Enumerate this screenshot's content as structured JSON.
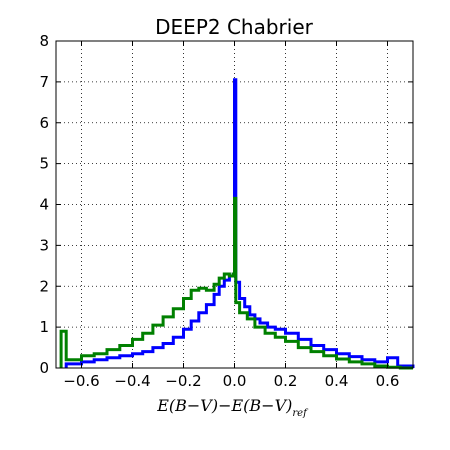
{
  "chart_data": {
    "type": "histogram",
    "title": "DEEP2 Chabrier",
    "xlabel": {
      "main": "E(B−V)−E(B−V)",
      "subscript": "ref"
    },
    "ylabel": "",
    "xlim": [
      -0.7,
      0.7
    ],
    "ylim": [
      0,
      8
    ],
    "xticks": [
      -0.6,
      -0.4,
      -0.2,
      0.0,
      0.2,
      0.4,
      0.6
    ],
    "xtick_labels": [
      "−0.6",
      "−0.4",
      "−0.2",
      "0.0",
      "0.2",
      "0.4",
      "0.6"
    ],
    "yticks": [
      0,
      1,
      2,
      3,
      4,
      5,
      6,
      7,
      8
    ],
    "ytick_labels": [
      "0",
      "1",
      "2",
      "3",
      "4",
      "5",
      "6",
      "7",
      "8"
    ],
    "grid": true,
    "series": [
      {
        "color": "#0000ff",
        "x": [
          -0.66,
          -0.6,
          -0.55,
          -0.5,
          -0.45,
          -0.4,
          -0.36,
          -0.32,
          -0.28,
          -0.24,
          -0.2,
          -0.17,
          -0.14,
          -0.11,
          -0.08,
          -0.06,
          -0.04,
          -0.02,
          -0.005,
          0.0,
          0.005,
          0.02,
          0.04,
          0.06,
          0.08,
          0.1,
          0.13,
          0.16,
          0.2,
          0.25,
          0.3,
          0.35,
          0.4,
          0.45,
          0.5,
          0.55,
          0.6,
          0.64,
          0.7
        ],
        "y": [
          0.1,
          0.15,
          0.2,
          0.25,
          0.3,
          0.35,
          0.4,
          0.5,
          0.6,
          0.75,
          0.95,
          1.15,
          1.35,
          1.55,
          1.8,
          2.0,
          2.15,
          2.25,
          2.3,
          7.05,
          2.1,
          1.7,
          1.5,
          1.3,
          1.2,
          1.1,
          1.0,
          0.95,
          0.85,
          0.7,
          0.55,
          0.45,
          0.35,
          0.28,
          0.2,
          0.15,
          0.25,
          0.05,
          0.0
        ]
      },
      {
        "color": "#008000",
        "x": [
          -0.68,
          -0.67,
          -0.66,
          -0.6,
          -0.55,
          -0.5,
          -0.45,
          -0.4,
          -0.36,
          -0.32,
          -0.28,
          -0.24,
          -0.2,
          -0.17,
          -0.14,
          -0.11,
          -0.08,
          -0.06,
          -0.04,
          -0.02,
          -0.005,
          0.0,
          0.005,
          0.02,
          0.05,
          0.08,
          0.12,
          0.16,
          0.2,
          0.25,
          0.3,
          0.35,
          0.4,
          0.45,
          0.5,
          0.55,
          0.6,
          0.65,
          0.7
        ],
        "y": [
          0.9,
          0.9,
          0.2,
          0.3,
          0.35,
          0.45,
          0.55,
          0.7,
          0.85,
          1.05,
          1.25,
          1.45,
          1.7,
          1.9,
          1.95,
          1.9,
          2.05,
          2.2,
          2.3,
          2.25,
          2.3,
          4.15,
          1.6,
          1.35,
          1.2,
          1.0,
          0.85,
          0.75,
          0.65,
          0.5,
          0.4,
          0.3,
          0.22,
          0.15,
          0.1,
          0.05,
          0.02,
          0.0,
          0.0
        ]
      }
    ]
  }
}
